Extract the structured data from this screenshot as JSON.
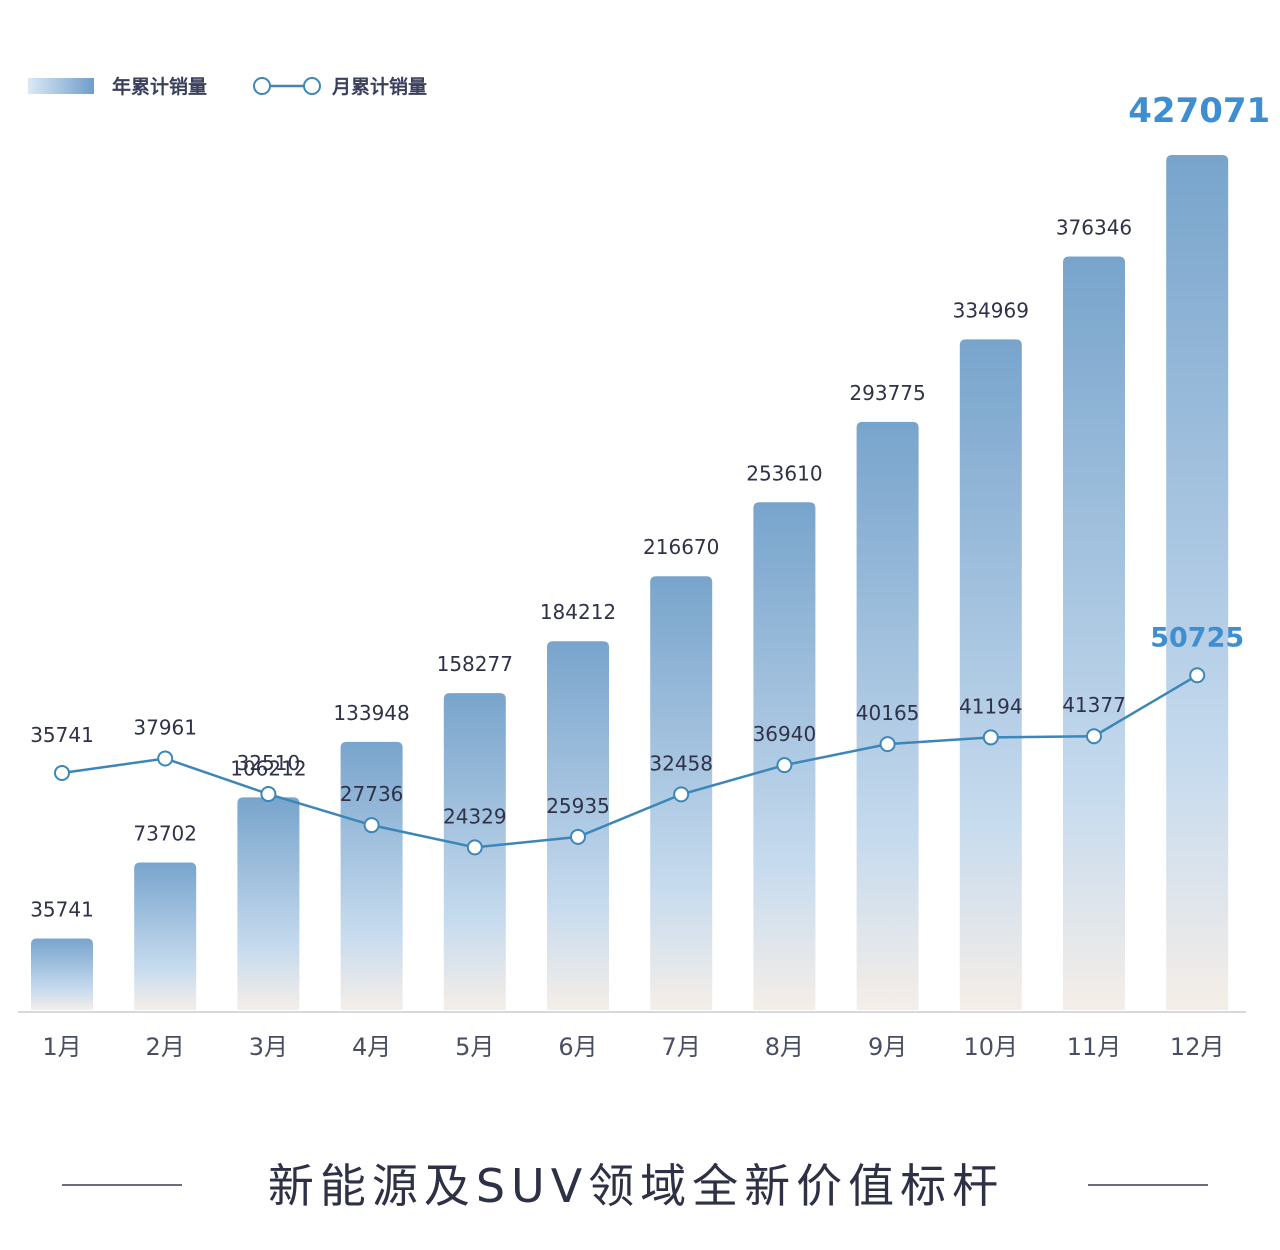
{
  "chart_data": {
    "type": "bar",
    "categories": [
      "1月",
      "2月",
      "3月",
      "4月",
      "5月",
      "6月",
      "7月",
      "8月",
      "9月",
      "10月",
      "11月",
      "12月"
    ],
    "series": [
      {
        "name": "年累计销量",
        "kind": "bar",
        "values": [
          35741,
          73702,
          106212,
          133948,
          158277,
          184212,
          216670,
          253610,
          293775,
          334969,
          376346,
          427071
        ]
      },
      {
        "name": "月累计销量",
        "kind": "line",
        "values": [
          35741,
          37961,
          32510,
          27736,
          24329,
          25935,
          32458,
          36940,
          40165,
          41194,
          41377,
          50725
        ]
      }
    ],
    "ylim": [
      0,
      440000
    ],
    "legend_position": "top-left",
    "grid": false,
    "highlight_color": "#3f8fd0",
    "bar_color_top": "#78a4cc",
    "bar_color_bottom": "#f3eee9",
    "line_color": "#3d86b8"
  },
  "footer": {
    "title": "新能源及SUV领域全新价值标杆"
  }
}
